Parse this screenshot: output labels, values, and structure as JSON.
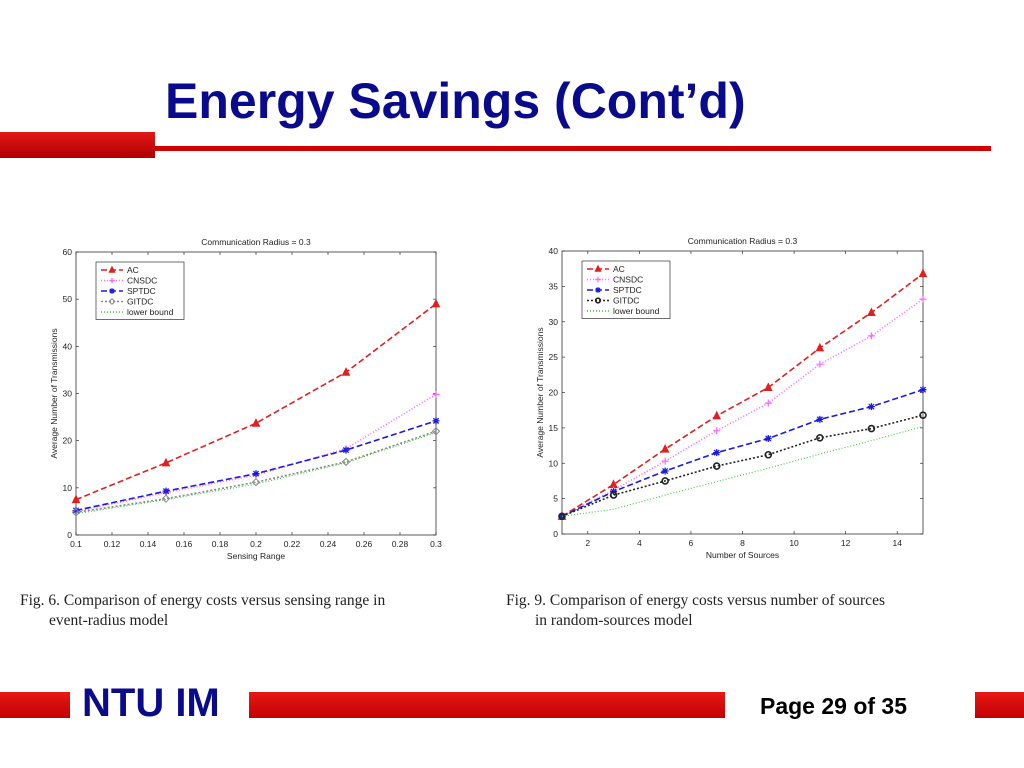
{
  "slide": {
    "title": "Energy Savings (Cont’d)",
    "brand": "NTU IM",
    "page": "Page 29 of 35"
  },
  "colors": {
    "title_blue": "#0a0a8c",
    "accent_red": "#d00000"
  },
  "captions": {
    "left": {
      "line1": "Fig. 6.    Comparison of energy costs versus sensing range in",
      "line2": "event-radius model"
    },
    "right": {
      "line1": "Fig. 9.    Comparison of energy costs versus number of sources",
      "line2": "in random-sources model"
    }
  },
  "chart_data": [
    {
      "type": "line",
      "title": "Communication Radius  = 0.3",
      "xlabel": "Sensing Range",
      "ylabel": "Average Number of Transmissions",
      "xlim": [
        0.1,
        0.3
      ],
      "ylim": [
        0,
        60
      ],
      "xticks": [
        0.1,
        0.12,
        0.14,
        0.16,
        0.18,
        0.2,
        0.22,
        0.24,
        0.26,
        0.28,
        0.3
      ],
      "xtick_labels": [
        "0.1",
        "0.12",
        "0.14",
        "0.16",
        "0.18",
        "0.2",
        "0.22",
        "0.24",
        "0.26",
        "0.28",
        "0.3"
      ],
      "yticks": [
        0,
        10,
        20,
        30,
        40,
        50,
        60
      ],
      "ytick_labels": [
        "0",
        "10",
        "20",
        "30",
        "40",
        "50",
        "60"
      ],
      "grid": false,
      "legend": "top-left",
      "x": [
        0.1,
        0.15,
        0.2,
        0.25,
        0.3
      ],
      "series": [
        {
          "name": "AC",
          "values": [
            7.5,
            15.3,
            23.7,
            34.5,
            49.0
          ],
          "color": "#e02020",
          "dash": "6,3",
          "marker": "triangle"
        },
        {
          "name": "CNSDC",
          "values": [
            5.0,
            9.0,
            12.7,
            18.3,
            29.8
          ],
          "color": "#ff66ff",
          "dash": "1,2",
          "marker": "plus"
        },
        {
          "name": "SPTDC",
          "values": [
            5.2,
            9.3,
            13.0,
            18.0,
            24.2
          ],
          "color": "#1a1ae0",
          "dash": "6,3",
          "marker": "star"
        },
        {
          "name": "GITDC",
          "values": [
            4.8,
            7.7,
            11.2,
            15.5,
            22.0
          ],
          "color": "#888888",
          "dash": "2,2",
          "marker": "diamond"
        },
        {
          "name": "lower bound",
          "values": [
            4.5,
            7.5,
            10.8,
            15.3,
            21.7
          ],
          "color": "#33cc33",
          "dash": "1,2",
          "marker": "none"
        }
      ]
    },
    {
      "type": "line",
      "title": "Communication Radius  = 0.3",
      "xlabel": "Number of Sources",
      "ylabel": "Average Number of Transmissions",
      "xlim": [
        1,
        15
      ],
      "ylim": [
        0,
        40
      ],
      "xticks": [
        2,
        4,
        6,
        8,
        10,
        12,
        14
      ],
      "xtick_labels": [
        "2",
        "4",
        "6",
        "8",
        "10",
        "12",
        "14"
      ],
      "yticks": [
        0,
        5,
        10,
        15,
        20,
        25,
        30,
        35,
        40
      ],
      "ytick_labels": [
        "0",
        "5",
        "10",
        "15",
        "20",
        "25",
        "30",
        "35",
        "40"
      ],
      "grid": false,
      "legend": "top-left",
      "x": [
        1,
        3,
        5,
        7,
        9,
        11,
        13,
        15
      ],
      "series": [
        {
          "name": "AC",
          "values": [
            2.5,
            7.0,
            12.0,
            16.7,
            20.7,
            26.3,
            31.3,
            36.8
          ],
          "color": "#e02020",
          "dash": "6,3",
          "marker": "triangle"
        },
        {
          "name": "CNSDC",
          "values": [
            2.5,
            6.2,
            10.3,
            14.6,
            18.5,
            24.0,
            28.0,
            33.2
          ],
          "color": "#ff66ff",
          "dash": "1,2",
          "marker": "plus"
        },
        {
          "name": "SPTDC",
          "values": [
            2.5,
            6.0,
            8.9,
            11.5,
            13.5,
            16.2,
            18.0,
            20.4
          ],
          "color": "#1a1ae0",
          "dash": "6,3",
          "marker": "star"
        },
        {
          "name": "GITDC",
          "values": [
            2.5,
            5.5,
            7.5,
            9.6,
            11.2,
            13.6,
            14.9,
            16.8
          ],
          "color": "#222222",
          "dash": "2,2",
          "marker": "circle"
        },
        {
          "name": "lower bound",
          "values": [
            2.5,
            3.5,
            5.5,
            7.4,
            9.3,
            11.3,
            13.2,
            15.2
          ],
          "color": "#33cc33",
          "dash": "1,2",
          "marker": "none"
        }
      ]
    }
  ]
}
